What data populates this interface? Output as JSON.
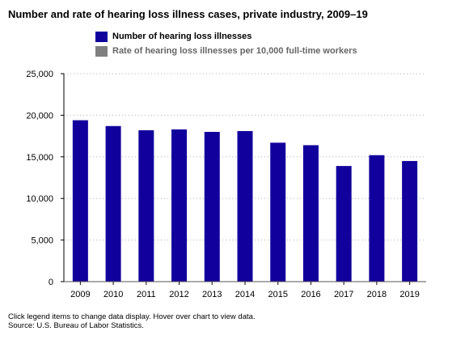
{
  "title": "Number and rate of hearing loss illness cases, private industry, 2009–19",
  "legend": [
    {
      "label": "Number of hearing loss illnesses",
      "color": "#12009c",
      "active": true
    },
    {
      "label": "Rate of hearing loss illnesses per 10,000 full-time workers",
      "color": "#7f7f7f",
      "active": false
    }
  ],
  "footnote": {
    "line1": "Click legend items to change data display. Hover over chart to view data.",
    "line2": "Source: U.S. Bureau of Labor Statistics."
  },
  "chart_data": {
    "type": "bar",
    "title": "Number and rate of hearing loss illness cases, private industry, 2009–19",
    "xlabel": "",
    "ylabel": "",
    "categories": [
      "2009",
      "2010",
      "2011",
      "2012",
      "2013",
      "2014",
      "2015",
      "2016",
      "2017",
      "2018",
      "2019"
    ],
    "series": [
      {
        "name": "Number of hearing loss illnesses",
        "color": "#12009c",
        "values": [
          19400,
          18700,
          18200,
          18300,
          18000,
          18100,
          16700,
          16400,
          13900,
          15200,
          14500
        ]
      }
    ],
    "ylim": [
      0,
      25000
    ],
    "yticks": [
      "0",
      "5,000",
      "10,000",
      "15,000",
      "20,000",
      "25,000"
    ],
    "ytick_values": [
      0,
      5000,
      10000,
      15000,
      20000,
      25000
    ],
    "grid": true,
    "legend_position": "top"
  }
}
